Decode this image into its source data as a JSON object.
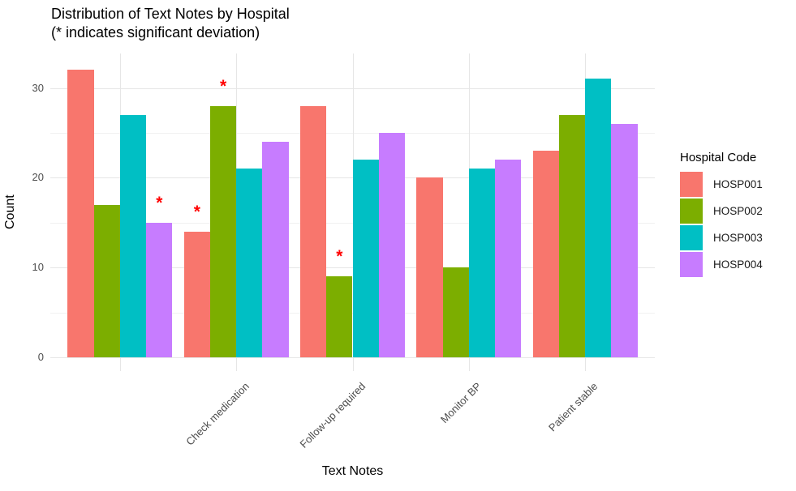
{
  "header": {
    "title_line1": "Distribution of Text Notes by Hospital",
    "title_line2": "(* indicates significant deviation)"
  },
  "chart_data": {
    "type": "bar",
    "grouping": "dodge",
    "title": "Distribution of Text Notes by Hospital\n(* indicates significant deviation)",
    "xlabel": "Text Notes",
    "ylabel": "Count",
    "categories": [
      "",
      "Check medication",
      "Follow-up required",
      "Monitor BP",
      "Patient stable"
    ],
    "series": [
      {
        "name": "HOSP001",
        "color": "#F8766D",
        "values": [
          32,
          14,
          28,
          20,
          23
        ]
      },
      {
        "name": "HOSP002",
        "color": "#7CAE00",
        "values": [
          17,
          28,
          9,
          10,
          27
        ]
      },
      {
        "name": "HOSP003",
        "color": "#00BFC4",
        "values": [
          27,
          21,
          22,
          21,
          31
        ]
      },
      {
        "name": "HOSP004",
        "color": "#C77CFF",
        "values": [
          15,
          24,
          25,
          22,
          26
        ]
      }
    ],
    "annotations": [
      {
        "category_index": 0,
        "series": "HOSP004",
        "label": "*"
      },
      {
        "category_index": 1,
        "series": "HOSP001",
        "label": "*"
      },
      {
        "category_index": 1,
        "series": "HOSP002",
        "label": "*"
      },
      {
        "category_index": 2,
        "series": "HOSP002",
        "label": "*"
      }
    ],
    "annotation_color": "#FF0000",
    "y_major_ticks": [
      0,
      10,
      20,
      30
    ],
    "y_minor_ticks": [
      5,
      15,
      25
    ],
    "ylim": [
      0,
      33.8
    ],
    "grid": true,
    "legend_title": "Hospital Code",
    "legend_position": "right",
    "x_tick_angle": 45
  }
}
